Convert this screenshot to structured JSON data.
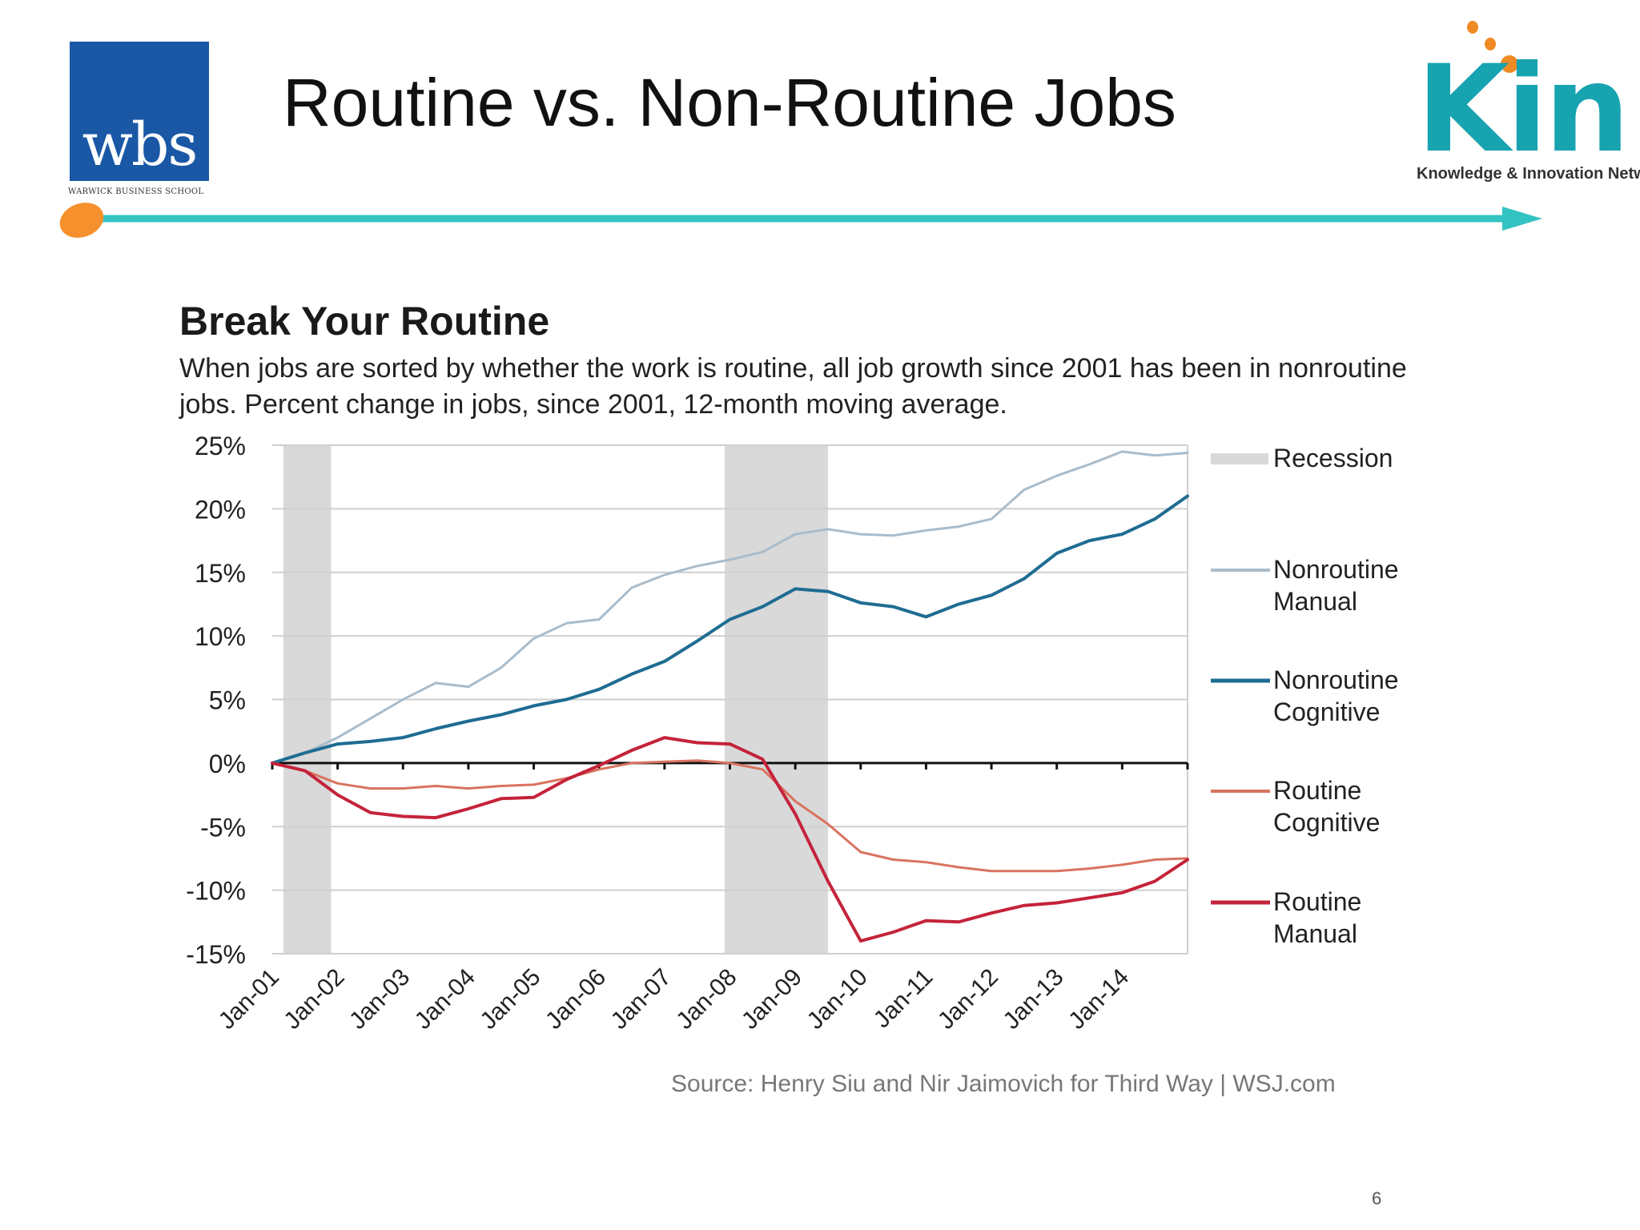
{
  "slide": {
    "title": "Routine vs. Non-Routine Jobs",
    "page_number": "6"
  },
  "logos": {
    "wbs": {
      "text": "wbs",
      "subtext": "WARWICK BUSINESS SCHOOL",
      "color": "#1a58a6"
    },
    "kin": {
      "text": "Kin",
      "subtext": "Knowledge & Innovation Network",
      "color": "#17a3b0",
      "dot_color": "#f08a24"
    }
  },
  "colors": {
    "header_line": "#33c3c3",
    "header_dot": "#f5902c",
    "recession": "#d9d9d9",
    "grid": "#cfcfcf",
    "zero_line": "#111111"
  },
  "chart_data": {
    "type": "line",
    "title": "Break Your Routine",
    "subtitle": "When jobs are sorted by whether the work is routine, all job growth since 2001 has been in nonroutine jobs. Percent change in jobs, since 2001, 12-month moving average.",
    "source": "Source: Henry Siu and Nir Jaimovich for Third Way  |  WSJ.com",
    "xlabel": "",
    "ylabel": "",
    "ylim": [
      -15,
      25
    ],
    "xlim": [
      2001.0,
      2015.0
    ],
    "y_ticks": [
      25,
      20,
      15,
      10,
      5,
      0,
      -5,
      -10,
      -15
    ],
    "y_tick_labels": [
      "25%",
      "20%",
      "15%",
      "10%",
      "5%",
      "0%",
      "-5%",
      "-10%",
      "-15%"
    ],
    "x_ticks": [
      2001,
      2002,
      2003,
      2004,
      2005,
      2006,
      2007,
      2008,
      2009,
      2010,
      2011,
      2012,
      2013,
      2014
    ],
    "x_tick_labels": [
      "Jan-01",
      "Jan-02",
      "Jan-03",
      "Jan-04",
      "Jan-05",
      "Jan-06",
      "Jan-07",
      "Jan-08",
      "Jan-09",
      "Jan-10",
      "Jan-11",
      "Jan-12",
      "Jan-13",
      "Jan-14"
    ],
    "recessions": [
      {
        "start": 2001.17,
        "end": 2001.9
      },
      {
        "start": 2007.92,
        "end": 2009.5
      }
    ],
    "legend": {
      "placement": "right",
      "recession_label": "Recession"
    },
    "series": [
      {
        "name": "Nonroutine Manual",
        "legend_lines": [
          "Nonroutine",
          "Manual"
        ],
        "color": "#a9bccb",
        "width": 3,
        "x": [
          2001.0,
          2001.5,
          2002.0,
          2002.5,
          2003.0,
          2003.5,
          2004.0,
          2004.5,
          2005.0,
          2005.5,
          2006.0,
          2006.5,
          2007.0,
          2007.5,
          2008.0,
          2008.5,
          2009.0,
          2009.5,
          2010.0,
          2010.5,
          2011.0,
          2011.5,
          2012.0,
          2012.5,
          2013.0,
          2013.5,
          2014.0,
          2014.5,
          2015.0
        ],
        "values": [
          0,
          0.8,
          2.0,
          3.5,
          5.0,
          6.3,
          6.0,
          7.5,
          9.8,
          11.0,
          11.3,
          13.8,
          14.8,
          15.5,
          16.0,
          16.6,
          18.0,
          18.4,
          18.0,
          17.9,
          18.3,
          18.6,
          19.2,
          21.5,
          22.6,
          23.5,
          24.5,
          24.2,
          24.4
        ]
      },
      {
        "name": "Nonroutine Cognitive",
        "legend_lines": [
          "Nonroutine",
          "Cognitive"
        ],
        "color": "#1f6c92",
        "width": 4,
        "x": [
          2001.0,
          2001.5,
          2002.0,
          2002.5,
          2003.0,
          2003.5,
          2004.0,
          2004.5,
          2005.0,
          2005.5,
          2006.0,
          2006.5,
          2007.0,
          2007.5,
          2008.0,
          2008.5,
          2009.0,
          2009.5,
          2010.0,
          2010.5,
          2011.0,
          2011.5,
          2012.0,
          2012.5,
          2013.0,
          2013.5,
          2014.0,
          2014.5,
          2015.0
        ],
        "values": [
          0,
          0.8,
          1.5,
          1.7,
          2.0,
          2.7,
          3.3,
          3.8,
          4.5,
          5.0,
          5.8,
          7.0,
          8.0,
          9.6,
          11.3,
          12.3,
          13.7,
          13.5,
          12.6,
          12.3,
          11.5,
          12.5,
          13.2,
          14.5,
          16.5,
          17.5,
          18.0,
          19.2,
          21.0
        ]
      },
      {
        "name": "Routine Cognitive",
        "legend_lines": [
          "Routine",
          "Cognitive"
        ],
        "color": "#d9735f",
        "width": 3,
        "x": [
          2001.0,
          2001.5,
          2002.0,
          2002.5,
          2003.0,
          2003.5,
          2004.0,
          2004.5,
          2005.0,
          2005.5,
          2006.0,
          2006.5,
          2007.0,
          2007.5,
          2008.0,
          2008.5,
          2009.0,
          2009.5,
          2010.0,
          2010.5,
          2011.0,
          2011.5,
          2012.0,
          2012.5,
          2013.0,
          2013.5,
          2014.0,
          2014.5,
          2015.0
        ],
        "values": [
          0,
          -0.6,
          -1.6,
          -2.0,
          -2.0,
          -1.8,
          -2.0,
          -1.8,
          -1.7,
          -1.2,
          -0.5,
          0.0,
          0.1,
          0.2,
          0.0,
          -0.5,
          -3.0,
          -4.8,
          -7.0,
          -7.6,
          -7.8,
          -8.2,
          -8.5,
          -8.5,
          -8.5,
          -8.3,
          -8.0,
          -7.6,
          -7.5
        ]
      },
      {
        "name": "Routine Manual",
        "legend_lines": [
          "Routine",
          "Manual"
        ],
        "color": "#c4233a",
        "width": 4,
        "x": [
          2001.0,
          2001.5,
          2002.0,
          2002.5,
          2003.0,
          2003.5,
          2004.0,
          2004.5,
          2005.0,
          2005.5,
          2006.0,
          2006.5,
          2007.0,
          2007.5,
          2008.0,
          2008.5,
          2009.0,
          2009.5,
          2010.0,
          2010.5,
          2011.0,
          2011.5,
          2012.0,
          2012.5,
          2013.0,
          2013.5,
          2014.0,
          2014.5,
          2015.0
        ],
        "values": [
          0,
          -0.6,
          -2.5,
          -3.9,
          -4.2,
          -4.3,
          -3.6,
          -2.8,
          -2.7,
          -1.3,
          -0.2,
          1.0,
          2.0,
          1.6,
          1.5,
          0.3,
          -4.0,
          -9.3,
          -14.0,
          -13.3,
          -12.4,
          -12.5,
          -11.8,
          -11.2,
          -11.0,
          -10.6,
          -10.2,
          -9.3,
          -7.6
        ]
      }
    ]
  }
}
